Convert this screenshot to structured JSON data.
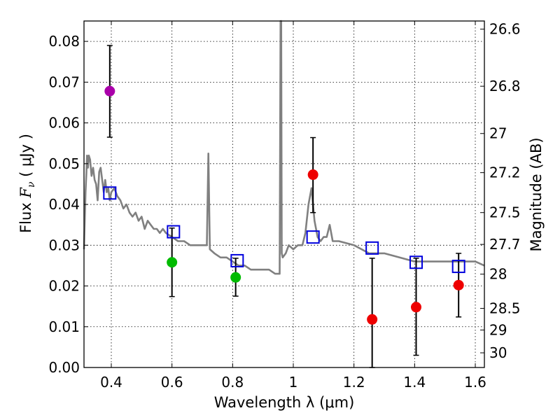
{
  "chart_data": {
    "type": "scatter",
    "xlabel": "Wavelength  λ (μm)",
    "ylabel_left": "Flux  F_ν  ( μJy )",
    "ylabel_left_parts": {
      "prefix": "Flux  ",
      "symbol": "F",
      "subscript": "ν",
      "suffix": "  ( μJy )"
    },
    "ylabel_right": "Magnitude (AB)",
    "xlim": [
      0.31,
      1.63
    ],
    "ylim": [
      0.0,
      0.085
    ],
    "grid": true,
    "x_ticks": [
      {
        "value": 0.4,
        "label": "0.4"
      },
      {
        "value": 0.6,
        "label": "0.6"
      },
      {
        "value": 0.8,
        "label": "0.8"
      },
      {
        "value": 1.0,
        "label": "1"
      },
      {
        "value": 1.2,
        "label": "1.2"
      },
      {
        "value": 1.4,
        "label": "1.4"
      },
      {
        "value": 1.6,
        "label": "1.6"
      }
    ],
    "y_ticks": [
      {
        "value": 0.0,
        "label": "0.00"
      },
      {
        "value": 0.01,
        "label": "0.01"
      },
      {
        "value": 0.02,
        "label": "0.02"
      },
      {
        "value": 0.03,
        "label": "0.03"
      },
      {
        "value": 0.04,
        "label": "0.04"
      },
      {
        "value": 0.05,
        "label": "0.05"
      },
      {
        "value": 0.06,
        "label": "0.06"
      },
      {
        "value": 0.07,
        "label": "0.07"
      },
      {
        "value": 0.08,
        "label": "0.08"
      }
    ],
    "mag_ticks": [
      {
        "flux": 0.083,
        "label": "26.6"
      },
      {
        "flux": 0.069,
        "label": "26.8"
      },
      {
        "flux": 0.0574,
        "label": "27"
      },
      {
        "flux": 0.0478,
        "label": "27.2"
      },
      {
        "flux": 0.038,
        "label": "27.5"
      },
      {
        "flux": 0.0302,
        "label": "27.7"
      },
      {
        "flux": 0.0229,
        "label": "28"
      },
      {
        "flux": 0.0145,
        "label": "28.5"
      },
      {
        "flux": 0.0092,
        "label": "29"
      },
      {
        "flux": 0.0036,
        "label": "30"
      }
    ],
    "series": [
      {
        "name": "model spectrum",
        "kind": "line",
        "color": "#808080",
        "x": [
          0.31,
          0.315,
          0.318,
          0.32,
          0.323,
          0.326,
          0.33,
          0.335,
          0.34,
          0.345,
          0.35,
          0.355,
          0.36,
          0.365,
          0.37,
          0.375,
          0.38,
          0.385,
          0.39,
          0.395,
          0.4,
          0.41,
          0.42,
          0.43,
          0.44,
          0.45,
          0.46,
          0.47,
          0.48,
          0.49,
          0.5,
          0.51,
          0.52,
          0.53,
          0.54,
          0.55,
          0.56,
          0.57,
          0.58,
          0.6,
          0.62,
          0.64,
          0.66,
          0.68,
          0.7,
          0.715,
          0.72,
          0.725,
          0.74,
          0.76,
          0.78,
          0.8,
          0.82,
          0.84,
          0.86,
          0.88,
          0.9,
          0.92,
          0.94,
          0.955,
          0.958,
          0.96,
          0.962,
          0.965,
          0.975,
          0.985,
          1.0,
          1.015,
          1.03,
          1.04,
          1.05,
          1.06,
          1.07,
          1.08,
          1.09,
          1.1,
          1.11,
          1.12,
          1.13,
          1.15,
          1.2,
          1.25,
          1.3,
          1.35,
          1.4,
          1.45,
          1.5,
          1.55,
          1.6,
          1.63
        ],
        "values": [
          0.029,
          0.043,
          0.048,
          0.052,
          0.049,
          0.052,
          0.051,
          0.047,
          0.049,
          0.046,
          0.045,
          0.041,
          0.048,
          0.049,
          0.046,
          0.043,
          0.046,
          0.043,
          0.044,
          0.041,
          0.043,
          0.044,
          0.042,
          0.041,
          0.039,
          0.04,
          0.038,
          0.037,
          0.038,
          0.036,
          0.037,
          0.034,
          0.036,
          0.035,
          0.034,
          0.034,
          0.033,
          0.034,
          0.033,
          0.032,
          0.031,
          0.031,
          0.03,
          0.03,
          0.03,
          0.03,
          0.0525,
          0.029,
          0.028,
          0.027,
          0.027,
          0.026,
          0.025,
          0.025,
          0.024,
          0.024,
          0.024,
          0.024,
          0.023,
          0.023,
          0.085,
          0.085,
          0.028,
          0.027,
          0.028,
          0.03,
          0.029,
          0.03,
          0.03,
          0.033,
          0.04,
          0.044,
          0.036,
          0.032,
          0.031,
          0.032,
          0.032,
          0.035,
          0.031,
          0.031,
          0.03,
          0.028,
          0.028,
          0.027,
          0.026,
          0.026,
          0.026,
          0.026,
          0.026,
          0.025
        ]
      },
      {
        "name": "model photometry",
        "kind": "open-square",
        "color": "#0000dd",
        "x": [
          0.395,
          0.605,
          0.815,
          1.065,
          1.26,
          1.405,
          1.545
        ],
        "values": [
          0.0428,
          0.0333,
          0.0262,
          0.032,
          0.0293,
          0.0258,
          0.0248
        ]
      },
      {
        "name": "observed (violet)",
        "kind": "point",
        "color": "#aa00aa",
        "x": [
          0.395
        ],
        "values": [
          0.0678
        ],
        "err_low": [
          0.0565
        ],
        "err_high": [
          0.079
        ]
      },
      {
        "name": "observed (green)",
        "kind": "point",
        "color": "#00bb00",
        "x": [
          0.6,
          0.81
        ],
        "values": [
          0.0258,
          0.0221
        ],
        "err_low": [
          0.0174,
          0.0175
        ],
        "err_high": [
          0.0342,
          0.0268
        ]
      },
      {
        "name": "observed (red)",
        "kind": "point",
        "color": "#ee0000",
        "x": [
          1.065,
          1.26,
          1.405,
          1.545
        ],
        "values": [
          0.0473,
          0.0118,
          0.0148,
          0.0202
        ],
        "err_low": [
          0.038,
          0.0,
          0.003,
          0.0124
        ],
        "err_high": [
          0.0564,
          0.0268,
          0.0268,
          0.028
        ]
      }
    ]
  }
}
